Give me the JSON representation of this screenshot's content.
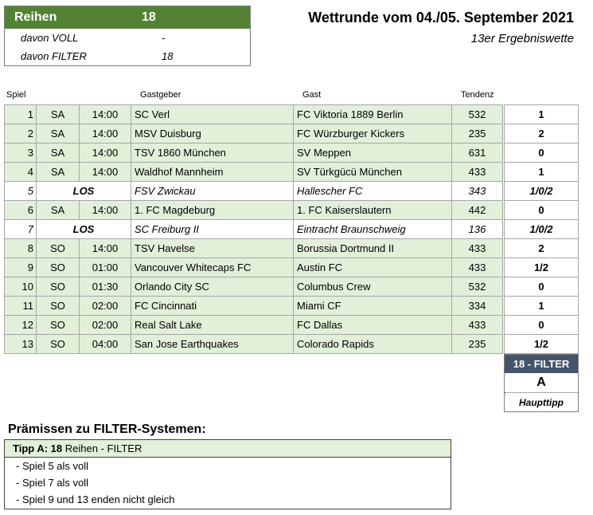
{
  "summary": {
    "label": "Reihen",
    "count": "18",
    "rows": [
      {
        "label": "davon VOLL",
        "value": "-"
      },
      {
        "label": "davon FILTER",
        "value": "18"
      }
    ]
  },
  "title": "Wettrunde vom 04./05. September 2021",
  "subtitle": "13er Ergebniswette",
  "columns": {
    "spiel": "Spiel",
    "gastgeber": "Gastgeber",
    "gast": "Gast",
    "tendenz": "Tendenz"
  },
  "matches": [
    {
      "nr": "1",
      "day": "SA",
      "time": "14:00",
      "home": "SC Verl",
      "away": "FC Viktoria 1889 Berlin",
      "tendenz": "532",
      "tipp": "1",
      "los": false
    },
    {
      "nr": "2",
      "day": "SA",
      "time": "14:00",
      "home": "MSV Duisburg",
      "away": "FC Würzburger Kickers",
      "tendenz": "235",
      "tipp": "2",
      "los": false
    },
    {
      "nr": "3",
      "day": "SA",
      "time": "14:00",
      "home": "TSV 1860 München",
      "away": "SV Meppen",
      "tendenz": "631",
      "tipp": "0",
      "los": false
    },
    {
      "nr": "4",
      "day": "SA",
      "time": "14:00",
      "home": "Waldhof Mannheim",
      "away": "SV Türkgücü München",
      "tendenz": "433",
      "tipp": "1",
      "los": false
    },
    {
      "nr": "5",
      "day": "LOS",
      "time": "",
      "home": "FSV Zwickau",
      "away": "Hallescher FC",
      "tendenz": "343",
      "tipp": "1/0/2",
      "los": true
    },
    {
      "nr": "6",
      "day": "SA",
      "time": "14:00",
      "home": "1. FC Magdeburg",
      "away": "1. FC Kaiserslautern",
      "tendenz": "442",
      "tipp": "0",
      "los": false
    },
    {
      "nr": "7",
      "day": "LOS",
      "time": "",
      "home": "SC Freiburg II",
      "away": "Eintracht Braunschweig",
      "tendenz": "136",
      "tipp": "1/0/2",
      "los": true
    },
    {
      "nr": "8",
      "day": "SO",
      "time": "14:00",
      "home": "TSV Havelse",
      "away": "Borussia Dortmund II",
      "tendenz": "433",
      "tipp": "2",
      "los": false
    },
    {
      "nr": "9",
      "day": "SO",
      "time": "01:00",
      "home": "Vancouver Whitecaps FC",
      "away": "Austin FC",
      "tendenz": "433",
      "tipp": "1/2",
      "los": false
    },
    {
      "nr": "10",
      "day": "SO",
      "time": "01:30",
      "home": "Orlando City SC",
      "away": "Columbus Crew",
      "tendenz": "532",
      "tipp": "0",
      "los": false
    },
    {
      "nr": "11",
      "day": "SO",
      "time": "02:00",
      "home": "FC Cincinnati",
      "away": "Miami CF",
      "tendenz": "334",
      "tipp": "1",
      "los": false
    },
    {
      "nr": "12",
      "day": "SO",
      "time": "02:00",
      "home": "Real Salt Lake",
      "away": "FC Dallas",
      "tendenz": "433",
      "tipp": "0",
      "los": false
    },
    {
      "nr": "13",
      "day": "SO",
      "time": "04:00",
      "home": "San Jose Earthquakes",
      "away": "Colorado Rapids",
      "tendenz": "235",
      "tipp": "1/2",
      "los": false
    }
  ],
  "filter": {
    "header": "18 - FILTER",
    "letter": "A",
    "label": "Haupttipp"
  },
  "premises": {
    "title": "Prämissen zu FILTER-Systemen:",
    "tip_prefix": "Tipp A:",
    "tip_count": "18",
    "tip_suffix": "Reihen - FILTER",
    "lines": [
      "- Spiel 5 als voll",
      "- Spiel 7 als voll",
      "- Spiel 9 und 13 enden nicht gleich"
    ]
  },
  "colors": {
    "header_green": "#548235",
    "row_green": "#e2efd9",
    "filter_header": "#44546a"
  }
}
